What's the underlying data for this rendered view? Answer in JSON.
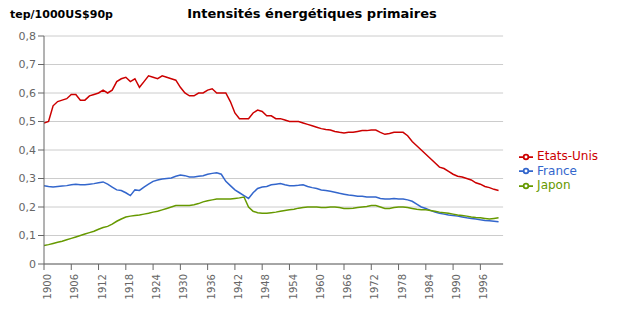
{
  "chart_data": {
    "type": "line",
    "title": "Intensités énergétiques primaires",
    "y_label": "tep/1000US$90p",
    "x": [
      1900,
      1901,
      1902,
      1903,
      1904,
      1905,
      1906,
      1907,
      1908,
      1909,
      1910,
      1911,
      1912,
      1913,
      1914,
      1915,
      1916,
      1917,
      1918,
      1919,
      1920,
      1921,
      1922,
      1923,
      1924,
      1925,
      1926,
      1927,
      1928,
      1929,
      1930,
      1931,
      1932,
      1933,
      1934,
      1935,
      1936,
      1937,
      1938,
      1939,
      1940,
      1941,
      1942,
      1943,
      1944,
      1945,
      1946,
      1947,
      1948,
      1949,
      1950,
      1951,
      1952,
      1953,
      1954,
      1955,
      1956,
      1957,
      1958,
      1959,
      1960,
      1961,
      1962,
      1963,
      1964,
      1965,
      1966,
      1967,
      1968,
      1969,
      1970,
      1971,
      1972,
      1973,
      1974,
      1975,
      1976,
      1977,
      1978,
      1979,
      1980,
      1981,
      1982,
      1983,
      1984,
      1985,
      1986,
      1987,
      1988,
      1989,
      1990,
      1991,
      1992,
      1993,
      1994,
      1995,
      1996,
      1997,
      1998,
      1999,
      2000
    ],
    "series": [
      {
        "name": "France",
        "color": "#3366cc",
        "values": [
          0.275,
          0.272,
          0.27,
          0.272,
          0.274,
          0.275,
          0.278,
          0.28,
          0.278,
          0.278,
          0.28,
          0.282,
          0.285,
          0.288,
          0.28,
          0.27,
          0.26,
          0.258,
          0.25,
          0.24,
          0.26,
          0.258,
          0.27,
          0.28,
          0.29,
          0.295,
          0.298,
          0.3,
          0.302,
          0.308,
          0.312,
          0.31,
          0.305,
          0.305,
          0.308,
          0.31,
          0.315,
          0.318,
          0.32,
          0.315,
          0.29,
          0.275,
          0.26,
          0.25,
          0.24,
          0.23,
          0.25,
          0.265,
          0.27,
          0.272,
          0.278,
          0.28,
          0.282,
          0.278,
          0.275,
          0.275,
          0.276,
          0.278,
          0.272,
          0.268,
          0.265,
          0.26,
          0.258,
          0.255,
          0.252,
          0.248,
          0.245,
          0.242,
          0.24,
          0.238,
          0.238,
          0.235,
          0.235,
          0.235,
          0.23,
          0.228,
          0.228,
          0.23,
          0.228,
          0.228,
          0.225,
          0.22,
          0.21,
          0.2,
          0.195,
          0.188,
          0.182,
          0.178,
          0.175,
          0.172,
          0.17,
          0.168,
          0.165,
          0.162,
          0.16,
          0.158,
          0.155,
          0.153,
          0.152,
          0.15,
          0.148
        ]
      },
      {
        "name": "Etats-Unis",
        "color": "#cc0000",
        "values": [
          0.495,
          0.5,
          0.555,
          0.57,
          0.575,
          0.58,
          0.595,
          0.595,
          0.575,
          0.575,
          0.59,
          0.595,
          0.6,
          0.61,
          0.6,
          0.61,
          0.64,
          0.65,
          0.655,
          0.64,
          0.65,
          0.62,
          0.64,
          0.66,
          0.655,
          0.65,
          0.66,
          0.655,
          0.65,
          0.645,
          0.62,
          0.6,
          0.59,
          0.59,
          0.6,
          0.6,
          0.61,
          0.615,
          0.6,
          0.6,
          0.6,
          0.57,
          0.53,
          0.51,
          0.51,
          0.51,
          0.53,
          0.54,
          0.535,
          0.52,
          0.52,
          0.51,
          0.51,
          0.505,
          0.5,
          0.5,
          0.5,
          0.495,
          0.49,
          0.485,
          0.48,
          0.475,
          0.472,
          0.47,
          0.465,
          0.462,
          0.46,
          0.462,
          0.462,
          0.465,
          0.468,
          0.468,
          0.47,
          0.47,
          0.462,
          0.455,
          0.458,
          0.462,
          0.462,
          0.462,
          0.45,
          0.43,
          0.415,
          0.4,
          0.385,
          0.37,
          0.355,
          0.34,
          0.335,
          0.325,
          0.315,
          0.308,
          0.305,
          0.3,
          0.295,
          0.285,
          0.28,
          0.272,
          0.268,
          0.262,
          0.258
        ]
      },
      {
        "name": "Japon",
        "color": "#669900",
        "values": [
          0.065,
          0.068,
          0.072,
          0.076,
          0.08,
          0.085,
          0.09,
          0.095,
          0.1,
          0.105,
          0.11,
          0.115,
          0.122,
          0.128,
          0.132,
          0.14,
          0.15,
          0.158,
          0.165,
          0.168,
          0.17,
          0.172,
          0.175,
          0.178,
          0.182,
          0.185,
          0.19,
          0.195,
          0.2,
          0.205,
          0.205,
          0.205,
          0.205,
          0.208,
          0.212,
          0.218,
          0.222,
          0.225,
          0.228,
          0.228,
          0.228,
          0.228,
          0.23,
          0.232,
          0.235,
          0.2,
          0.185,
          0.18,
          0.178,
          0.178,
          0.18,
          0.182,
          0.185,
          0.188,
          0.19,
          0.192,
          0.196,
          0.198,
          0.2,
          0.2,
          0.2,
          0.198,
          0.198,
          0.2,
          0.2,
          0.198,
          0.195,
          0.195,
          0.196,
          0.198,
          0.2,
          0.202,
          0.205,
          0.205,
          0.2,
          0.195,
          0.195,
          0.198,
          0.2,
          0.2,
          0.198,
          0.195,
          0.192,
          0.19,
          0.19,
          0.188,
          0.185,
          0.182,
          0.18,
          0.178,
          0.175,
          0.172,
          0.17,
          0.168,
          0.165,
          0.163,
          0.162,
          0.16,
          0.158,
          0.16,
          0.162
        ]
      }
    ],
    "xlim": [
      1900,
      2001
    ],
    "xticks": [
      1900,
      1906,
      1912,
      1918,
      1924,
      1930,
      1936,
      1942,
      1948,
      1954,
      1960,
      1966,
      1972,
      1978,
      1984,
      1990,
      1996
    ],
    "ylim": [
      0,
      0.8
    ],
    "yticks": [
      0,
      {
        "value": 0.1,
        "label": "0,1"
      },
      {
        "value": 0.2,
        "label": "0,2"
      },
      {
        "value": 0.3,
        "label": "0,3"
      },
      {
        "value": 0.4,
        "label": "0,4"
      },
      {
        "value": 0.5,
        "label": "0,5"
      },
      {
        "value": 0.6,
        "label": "0,6"
      },
      {
        "value": 0.7,
        "label": "0,7"
      },
      {
        "value": 0.8,
        "label": "0,8"
      }
    ],
    "grid": true,
    "legend": "right"
  }
}
